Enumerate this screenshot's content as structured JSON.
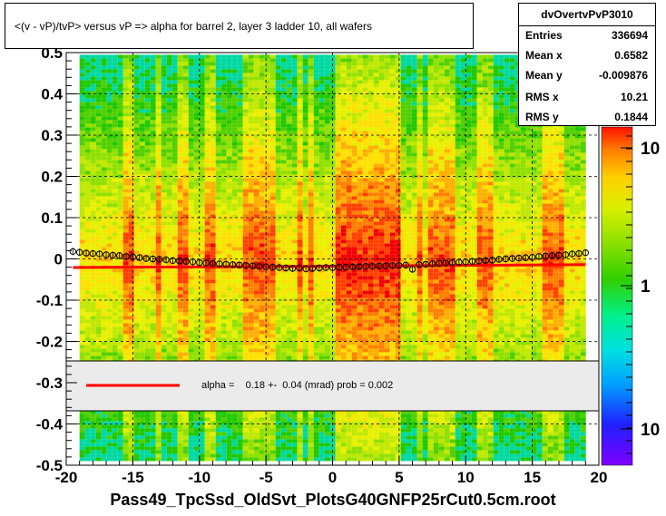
{
  "title": "<(v - vP)/tvP> versus   vP => alpha for barrel 2, layer 3 ladder 10, all wafers",
  "stats": {
    "name": "dvOvertvPvP3010",
    "rows": [
      {
        "key": "Entries",
        "value": "336694"
      },
      {
        "key": "Mean x",
        "value": "0.6582"
      },
      {
        "key": "Mean y",
        "value": "-0.009876"
      },
      {
        "key": "RMS x",
        "value": "10.21"
      },
      {
        "key": "RMS y",
        "value": "0.1844"
      }
    ]
  },
  "fit_label": "alpha =    0.18 +-  0.04 (mrad) prob = 0.002",
  "colors": {
    "fit_line": "#ff0000",
    "legend_fill": "#ebebeb"
  },
  "chart_data": {
    "type": "heatmap",
    "title": "<(v - vP)/tvP> versus   vP => alpha for barrel 2, layer 3 ladder 10, all wafers",
    "xlabel": "Pass49_TpcSsd_OldSvt_PlotsG40GNFP25rCut0.5cm.root",
    "ylabel": "",
    "xlim": [
      -20,
      20
    ],
    "ylim": [
      -0.5,
      0.5
    ],
    "x_ticks": [
      "-20",
      "-15",
      "-10",
      "-5",
      "0",
      "5",
      "10",
      "15",
      "20"
    ],
    "y_ticks": [
      "-0.5",
      "-0.4",
      "-0.3",
      "-0.2",
      "-0.1",
      "0",
      "0.1",
      "0.2",
      "0.3",
      "0.4",
      "0.5"
    ],
    "grid": true,
    "color_scale": {
      "type": "log",
      "tick_labels": [
        "10",
        "1",
        "10"
      ]
    },
    "profile_points": {
      "x": [
        -19.5,
        -19,
        -18.5,
        -18,
        -17.5,
        -17,
        -16.5,
        -16,
        -15.5,
        -15,
        -14.5,
        -14,
        -13.5,
        -13,
        -12.5,
        -12,
        -11.5,
        -11,
        -10.5,
        -10,
        -9.5,
        -9,
        -8.5,
        -8,
        -7.5,
        -7,
        -6.5,
        -6,
        -5.5,
        -5,
        -4.5,
        -4,
        -3.5,
        -3,
        -2.5,
        -2,
        -1.5,
        -1,
        -0.5,
        0,
        0.5,
        1,
        1.5,
        2,
        2.5,
        3,
        3.5,
        4,
        4.5,
        5,
        5.5,
        6,
        6.5,
        7,
        7.5,
        8,
        8.5,
        9,
        9.5,
        10,
        10.5,
        11,
        11.5,
        12,
        12.5,
        13,
        13.5,
        14,
        14.5,
        15,
        15.5,
        16,
        16.5,
        17,
        17.5,
        18,
        18.5,
        19
      ],
      "y": [
        0.018,
        0.016,
        0.014,
        0.013,
        0.012,
        0.01,
        0.009,
        0.008,
        0.006,
        0.005,
        0.003,
        0.001,
        0.0,
        -0.001,
        -0.002,
        -0.004,
        -0.005,
        -0.006,
        -0.007,
        -0.009,
        -0.01,
        -0.011,
        -0.012,
        -0.013,
        -0.014,
        -0.015,
        -0.016,
        -0.017,
        -0.018,
        -0.019,
        -0.02,
        -0.021,
        -0.022,
        -0.023,
        -0.022,
        -0.024,
        -0.023,
        -0.022,
        -0.021,
        -0.021,
        -0.02,
        -0.02,
        -0.019,
        -0.019,
        -0.018,
        -0.018,
        -0.017,
        -0.017,
        -0.016,
        -0.016,
        -0.015,
        -0.025,
        -0.014,
        -0.013,
        -0.012,
        -0.011,
        -0.01,
        -0.009,
        -0.008,
        -0.007,
        -0.006,
        -0.005,
        -0.004,
        -0.003,
        -0.001,
        0.0,
        0.001,
        0.002,
        0.003,
        0.004,
        0.006,
        0.007,
        0.008,
        0.009,
        0.01,
        0.012,
        0.013,
        0.015
      ]
    },
    "fit_line": {
      "x": [
        -19.5,
        19
      ],
      "y": [
        -0.021,
        -0.014
      ]
    }
  }
}
